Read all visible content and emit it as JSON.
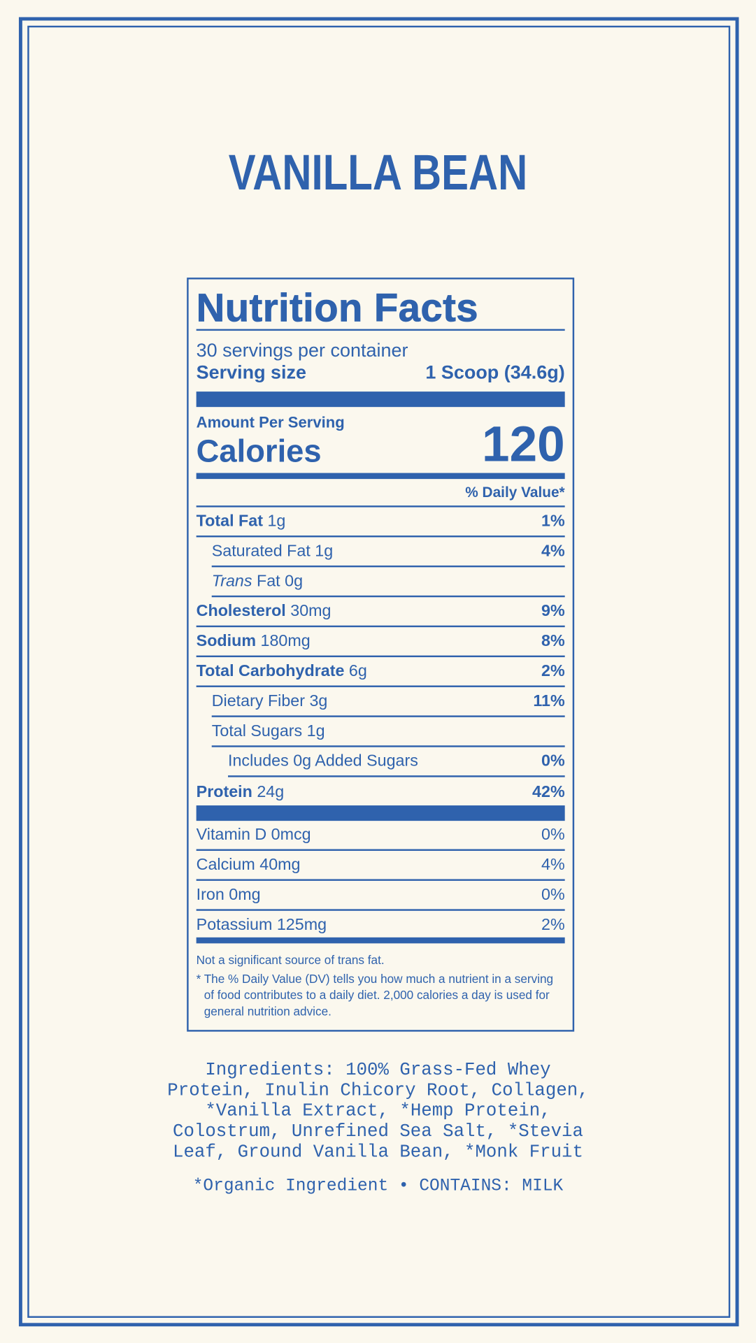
{
  "title": "VANILLA BEAN",
  "label": {
    "heading": "Nutrition Facts",
    "servings": "30 servings per container",
    "serving_size_label": "Serving size",
    "serving_size_value": "1 Scoop (34.6g)",
    "amount_per_serving": "Amount Per Serving",
    "calories_label": "Calories",
    "calories": 120,
    "daily_value_header": "% Daily Value*",
    "nutrients": [
      {
        "name": "Total Fat",
        "amount": "1g",
        "dv": "1%"
      },
      {
        "name": "Saturated Fat",
        "amount": "1g",
        "dv": "4%"
      },
      {
        "name_italic": "Trans",
        "name": "Fat",
        "amount": "0g"
      },
      {
        "name": "Cholesterol",
        "amount": "30mg",
        "dv": "9%"
      },
      {
        "name": "Sodium",
        "amount": "180mg",
        "dv": "8%"
      },
      {
        "name": "Total Carbohydrate",
        "amount": "6g",
        "dv": "2%"
      },
      {
        "name": "Dietary Fiber",
        "amount": "3g",
        "dv": "11%"
      },
      {
        "name": "Total Sugars",
        "amount": "1g"
      },
      {
        "name": "Includes 0g Added Sugars",
        "dv": "0%"
      },
      {
        "name": "Protein",
        "amount": "24g",
        "dv": "42%"
      }
    ],
    "vitamins": [
      {
        "name": "Vitamin D 0mcg",
        "dv": "0%"
      },
      {
        "name": "Calcium 40mg",
        "dv": "4%"
      },
      {
        "name": "Iron 0mg",
        "dv": "0%"
      },
      {
        "name": "Potassium 125mg",
        "dv": "2%"
      }
    ],
    "footnote_trans": "Not a significant source of trans fat.",
    "footnote_marker": "*",
    "footnote_dv": "The % Daily Value (DV) tells you how much a nutrient in a serving of food contributes to a daily diet. 2,000 calories a day is used for general nutrition advice."
  },
  "ingredients": "Ingredients: 100% Grass-Fed Whey Protein, Inulin Chicory Root, Collagen, *Vanilla Extract, *Hemp Protein, Colostrum, Unrefined Sea Salt, *Stevia Leaf, Ground Vanilla Bean, *Monk Fruit",
  "allergen": "*Organic Ingredient • CONTAINS: MILK"
}
